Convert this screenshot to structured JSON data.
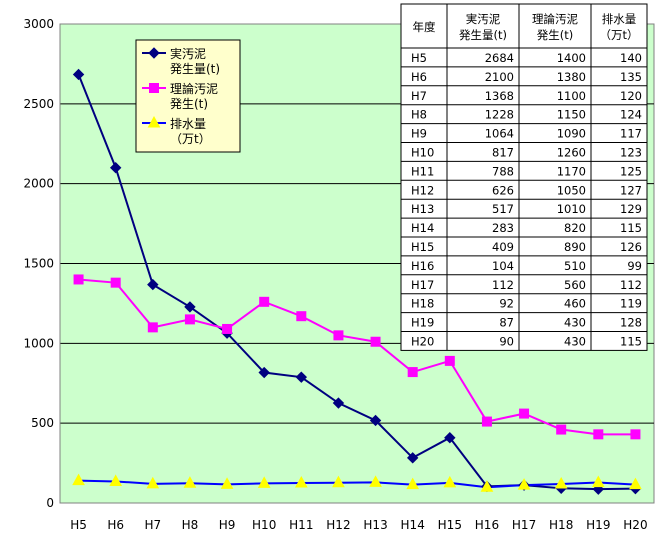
{
  "chart_data": {
    "type": "line",
    "categories": [
      "H5",
      "H6",
      "H7",
      "H8",
      "H9",
      "H10",
      "H11",
      "H12",
      "H13",
      "H14",
      "H15",
      "H16",
      "H17",
      "H18",
      "H19",
      "H20"
    ],
    "ylim": [
      0,
      3000
    ],
    "yticks": [
      0,
      500,
      1000,
      1500,
      2000,
      2500,
      3000
    ],
    "grid": true,
    "legend_position": "top-left",
    "series": [
      {
        "name": "実汚泥発生量(t)",
        "legend_lines": [
          "実汚泥",
          "発生量(t)"
        ],
        "color": "#000080",
        "marker": "diamond",
        "values": [
          2684,
          2100,
          1368,
          1228,
          1064,
          817,
          788,
          626,
          517,
          283,
          409,
          104,
          112,
          92,
          87,
          90
        ]
      },
      {
        "name": "理論汚泥発生(t)",
        "legend_lines": [
          "理論汚泥",
          "発生(t)"
        ],
        "color": "#ff00ff",
        "marker": "square",
        "values": [
          1400,
          1380,
          1100,
          1150,
          1090,
          1260,
          1170,
          1050,
          1010,
          820,
          890,
          510,
          560,
          460,
          430,
          430
        ]
      },
      {
        "name": "排水量（万t）",
        "legend_lines": [
          "排水量",
          "（万t）"
        ],
        "color": "#0000ff",
        "marker_color": "#ffff00",
        "marker": "triangle",
        "values": [
          140,
          135,
          120,
          124,
          117,
          123,
          125,
          127,
          129,
          115,
          126,
          99,
          112,
          119,
          128,
          115
        ]
      }
    ],
    "table": {
      "headers": [
        [
          "年度"
        ],
        [
          "実汚泥",
          "発生量(t)"
        ],
        [
          "理論汚泥",
          "発生(t)"
        ],
        [
          "排水量",
          "（万t）"
        ]
      ],
      "rows": [
        [
          "H5",
          "2684",
          "1400",
          "140"
        ],
        [
          "H6",
          "2100",
          "1380",
          "135"
        ],
        [
          "H7",
          "1368",
          "1100",
          "120"
        ],
        [
          "H8",
          "1228",
          "1150",
          "124"
        ],
        [
          "H9",
          "1064",
          "1090",
          "117"
        ],
        [
          "H10",
          "817",
          "1260",
          "123"
        ],
        [
          "H11",
          "788",
          "1170",
          "125"
        ],
        [
          "H12",
          "626",
          "1050",
          "127"
        ],
        [
          "H13",
          "517",
          "1010",
          "129"
        ],
        [
          "H14",
          "283",
          "820",
          "115"
        ],
        [
          "H15",
          "409",
          "890",
          "126"
        ],
        [
          "H16",
          "104",
          "510",
          "99"
        ],
        [
          "H17",
          "112",
          "560",
          "112"
        ],
        [
          "H18",
          "92",
          "460",
          "119"
        ],
        [
          "H19",
          "87",
          "430",
          "128"
        ],
        [
          "H20",
          "90",
          "430",
          "115"
        ]
      ]
    },
    "colors": {
      "plot_background": "#ccffcc",
      "grid": "#000000"
    }
  }
}
